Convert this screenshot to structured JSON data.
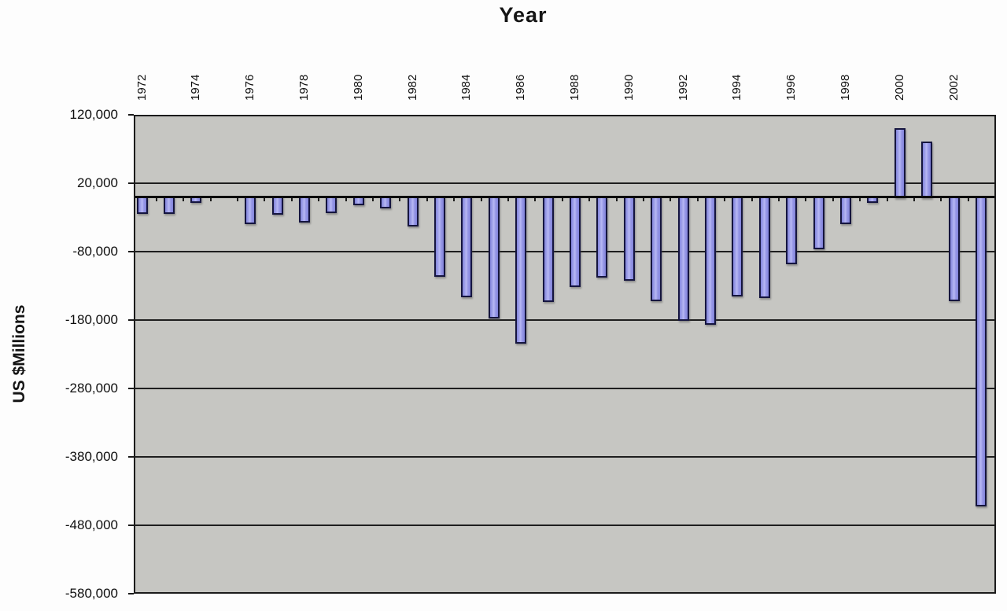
{
  "chart_data": {
    "type": "bar",
    "title": "Year",
    "xlabel": "Year",
    "ylabel": "US $Millions",
    "categories": [
      1972,
      1973,
      1974,
      1975,
      1976,
      1977,
      1978,
      1979,
      1980,
      1981,
      1982,
      1983,
      1984,
      1985,
      1986,
      1987,
      1988,
      1989,
      1990,
      1991,
      1992,
      1993,
      1994,
      1995,
      1996,
      1997,
      1998,
      1999,
      2000,
      2001,
      2002,
      2003
    ],
    "values": [
      -22000,
      -22000,
      -6000,
      0,
      -37000,
      -24000,
      -35000,
      -21000,
      -10000,
      -14000,
      -41000,
      -115000,
      -144000,
      -175000,
      -212000,
      -151000,
      -130000,
      -116000,
      -120000,
      -150000,
      -179000,
      -185000,
      -143000,
      -146000,
      -96000,
      -74000,
      -37000,
      -6000,
      100000,
      81000,
      -150000,
      -450000
    ],
    "x_tick_labels": [
      "1972",
      "1974",
      "1976",
      "1978",
      "1980",
      "1982",
      "1984",
      "1986",
      "1988",
      "1990",
      "1992",
      "1994",
      "1996",
      "1998",
      "2000",
      "2002"
    ],
    "y_ticks": [
      120000,
      20000,
      -80000,
      -180000,
      -280000,
      -380000,
      -480000,
      -580000
    ],
    "y_tick_labels": [
      "120,000",
      "20,000",
      "-80,000",
      "-180,000",
      "-280,000",
      "-380,000",
      "-480,000",
      "-580,000"
    ],
    "ylim": [
      -580000,
      120000
    ],
    "grid": "horizontal",
    "legend": "none",
    "bar_color": "#9a9be8",
    "bar_border_color": "#15153f",
    "plot_bg": "#c6c6c2",
    "gridline_color": "#1e1e1e"
  }
}
